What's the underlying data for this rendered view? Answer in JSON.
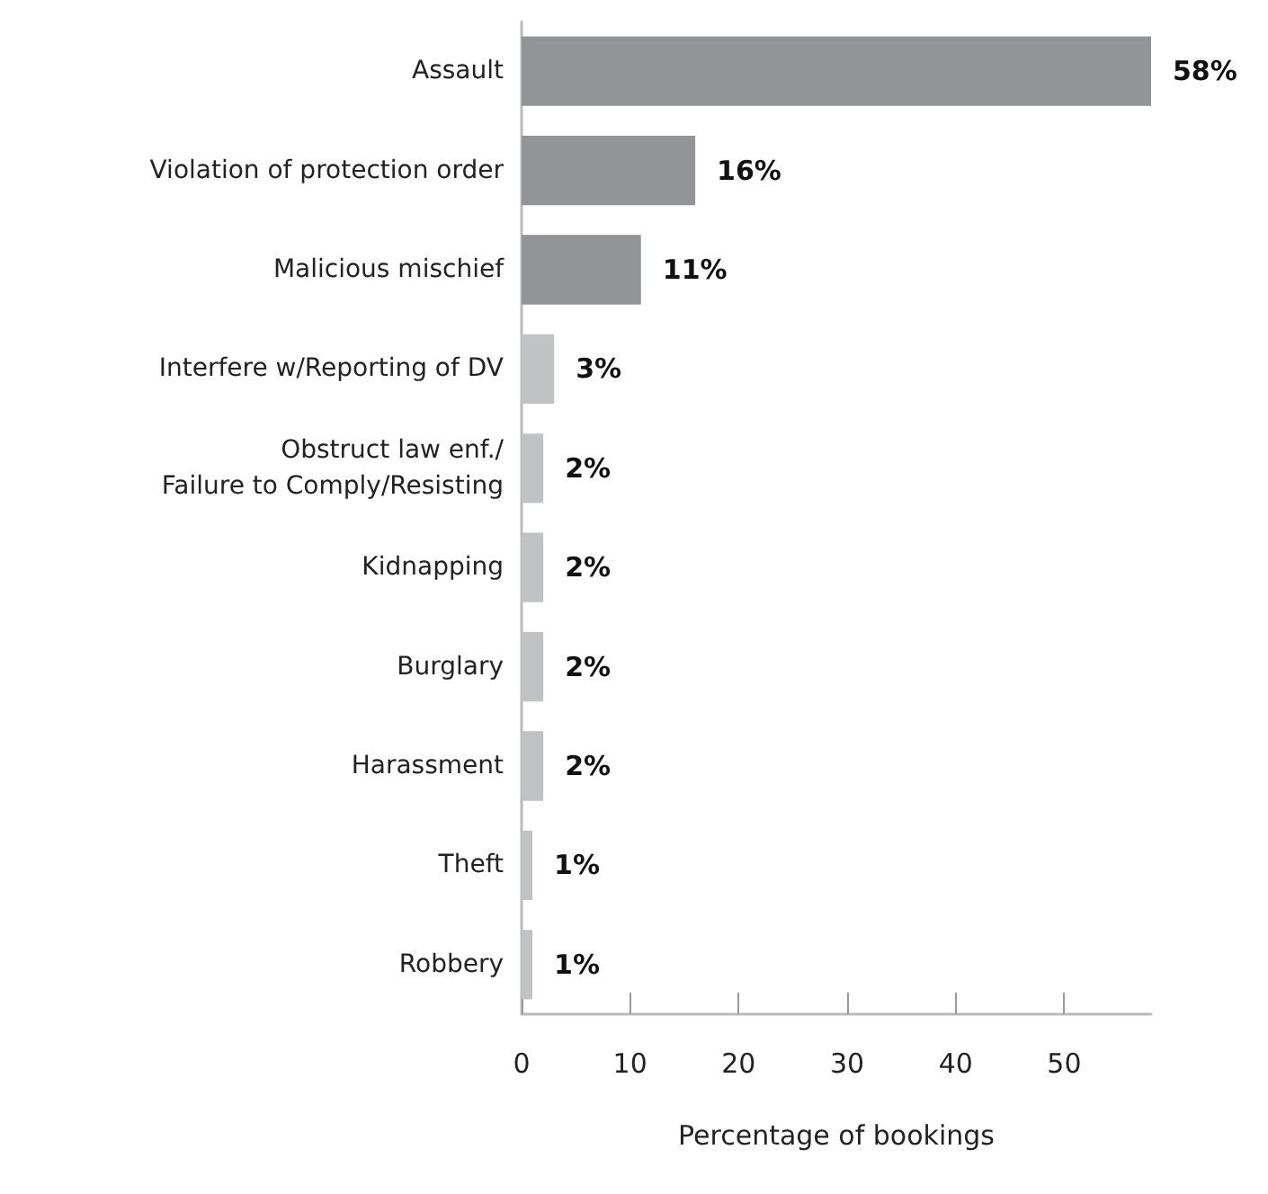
{
  "chart_data": {
    "type": "bar",
    "orientation": "horizontal",
    "xlabel": "Percentage of bookings",
    "categories": [
      "Assault",
      "Violation of protection order",
      "Malicious mischief",
      "Interfere w/Reporting of DV",
      "Obstruct law enf./\nFailure to Comply/Resisting",
      "Kidnapping",
      "Burglary",
      "Harassment",
      "Theft",
      "Robbery"
    ],
    "values": [
      58,
      16,
      11,
      3,
      2,
      2,
      2,
      2,
      1,
      1
    ],
    "value_labels": [
      "58%",
      "16%",
      "11%",
      "3%",
      "2%",
      "2%",
      "2%",
      "2%",
      "1%",
      "1%"
    ],
    "colors": [
      "#939497",
      "#939497",
      "#939497",
      "#c1c2c4",
      "#c1c2c4",
      "#c1c2c4",
      "#c1c2c4",
      "#c1c2c4",
      "#c1c2c4",
      "#c1c2c4"
    ],
    "xlim": [
      0,
      58
    ],
    "xticks": [
      0,
      10,
      20,
      30,
      40,
      50
    ],
    "grid": false
  }
}
